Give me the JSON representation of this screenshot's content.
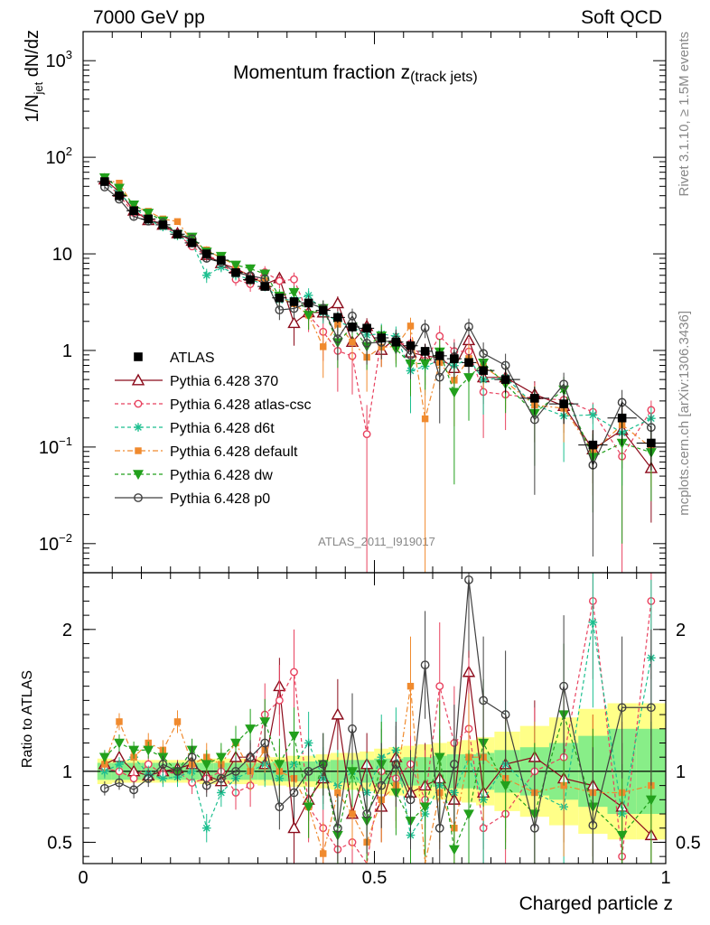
{
  "header": {
    "left": "7000 GeV pp",
    "right": "Soft QCD"
  },
  "side_text": {
    "rivet": "Rivet 3.1.10, ≥ 1.5M events",
    "mcplots": "mcplots.cern.ch [arXiv:1306.3436]"
  },
  "chart_data": {
    "type": "scatter",
    "title_main": "Momentum fraction ",
    "title_var": "z",
    "title_sub": "(track jets)",
    "analysis_tag": "ATLAS_2011_I919017",
    "xlabel": "Charged particle z",
    "ylabel_main_a": "1/N",
    "ylabel_main_sub": "jet",
    "ylabel_main_b": " dN/dz",
    "ylabel_ratio": "Ratio to ATLAS",
    "xlim": [
      0,
      1
    ],
    "ylim_main": [
      0.005,
      2000
    ],
    "ylog": true,
    "ylim_ratio": [
      0.35,
      2.4
    ],
    "x_ticks": [
      {
        "v": 0,
        "label": "0"
      },
      {
        "v": 0.5,
        "label": "0.5"
      },
      {
        "v": 1,
        "label": "1"
      }
    ],
    "y_ticks_main": [
      {
        "v": 0.01,
        "base": "10",
        "exp": "−2"
      },
      {
        "v": 0.1,
        "base": "10",
        "exp": "−1"
      },
      {
        "v": 1,
        "base": "1",
        "exp": ""
      },
      {
        "v": 10,
        "base": "10",
        "exp": ""
      },
      {
        "v": 100,
        "base": "10",
        "exp": "2"
      },
      {
        "v": 1000,
        "base": "10",
        "exp": "3"
      }
    ],
    "y_ticks_ratio": [
      {
        "v": 0.5,
        "label": "0.5"
      },
      {
        "v": 1,
        "label": "1"
      },
      {
        "v": 2,
        "label": "2"
      }
    ],
    "x": [
      0.037,
      0.062,
      0.087,
      0.112,
      0.137,
      0.162,
      0.187,
      0.212,
      0.237,
      0.262,
      0.287,
      0.312,
      0.337,
      0.362,
      0.387,
      0.412,
      0.437,
      0.462,
      0.487,
      0.512,
      0.537,
      0.562,
      0.587,
      0.612,
      0.637,
      0.662,
      0.687,
      0.725,
      0.775,
      0.825,
      0.875,
      0.925,
      0.975
    ],
    "data": {
      "name": "ATLAS",
      "values": [
        56,
        40,
        28,
        23,
        20,
        16,
        13,
        10,
        8.6,
        6.4,
        5.4,
        4.6,
        3.5,
        3.2,
        3.1,
        2.6,
        2.2,
        1.75,
        1.7,
        1.35,
        1.22,
        1.12,
        0.98,
        0.88,
        0.82,
        0.75,
        0.62,
        0.5,
        0.32,
        0.28,
        0.105,
        0.2,
        0.11
      ],
      "band_inner": [
        0.06,
        0.06,
        0.06,
        0.06,
        0.06,
        0.06,
        0.06,
        0.06,
        0.06,
        0.06,
        0.06,
        0.06,
        0.07,
        0.07,
        0.07,
        0.07,
        0.08,
        0.08,
        0.08,
        0.09,
        0.09,
        0.1,
        0.1,
        0.11,
        0.12,
        0.12,
        0.13,
        0.15,
        0.17,
        0.2,
        0.25,
        0.3,
        0.3
      ],
      "band_outer": [
        0.09,
        0.08,
        0.08,
        0.08,
        0.08,
        0.08,
        0.08,
        0.09,
        0.09,
        0.09,
        0.09,
        0.1,
        0.1,
        0.11,
        0.11,
        0.12,
        0.13,
        0.13,
        0.14,
        0.16,
        0.17,
        0.18,
        0.19,
        0.2,
        0.21,
        0.22,
        0.24,
        0.28,
        0.32,
        0.38,
        0.44,
        0.48,
        0.48
      ]
    },
    "series": [
      {
        "name": "Pythia 6.428 370",
        "color": "#8b0a1a",
        "marker": "triangle",
        "dash": "",
        "ratio": [
          1.05,
          1.1,
          1.0,
          0.97,
          1.0,
          1.02,
          1.05,
          0.97,
          0.93,
          1.1,
          1.1,
          1.05,
          1.6,
          0.6,
          0.8,
          0.95,
          1.4,
          0.7,
          1.05,
          0.75,
          1.1,
          0.85,
          0.9,
          0.95,
          0.8,
          1.7,
          0.85,
          1.05,
          1.1,
          0.95,
          0.9,
          0.75,
          0.55
        ],
        "err": [
          0.05,
          0.05,
          0.05,
          0.05,
          0.06,
          0.06,
          0.06,
          0.07,
          0.08,
          0.08,
          0.1,
          0.12,
          0.2,
          0.25,
          0.15,
          0.18,
          0.25,
          0.2,
          0.22,
          0.25,
          0.22,
          0.28,
          0.3,
          0.3,
          0.35,
          0.5,
          0.4,
          0.35,
          0.4,
          0.45,
          0.5,
          0.45,
          0.4
        ]
      },
      {
        "name": "Pythia 6.428 atlas-csc",
        "color": "#e8425f",
        "marker": "circle",
        "dash": "4,3",
        "ratio": [
          1.02,
          1.0,
          0.95,
          1.05,
          0.98,
          1.0,
          0.92,
          0.95,
          1.0,
          0.85,
          0.9,
          1.4,
          1.5,
          1.7,
          0.75,
          0.6,
          0.45,
          0.5,
          0.08,
          1.0,
          0.95,
          1.05,
          0.8,
          1.6,
          1.2,
          1.3,
          0.6,
          0.7,
          1.0,
          1.1,
          2.2,
          0.4,
          2.2
        ],
        "err": [
          0.06,
          0.06,
          0.06,
          0.06,
          0.07,
          0.08,
          0.08,
          0.1,
          0.12,
          0.12,
          0.15,
          0.22,
          0.25,
          0.3,
          0.25,
          0.3,
          0.28,
          0.3,
          0.08,
          0.3,
          0.3,
          0.35,
          0.35,
          0.45,
          0.4,
          0.5,
          0.4,
          0.4,
          0.45,
          0.5,
          0.55,
          0.5,
          0.55
        ]
      },
      {
        "name": "Pythia 6.428 d6t",
        "color": "#1cbf8f",
        "marker": "star",
        "dash": "4,3",
        "ratio": [
          1.0,
          1.05,
          1.1,
          0.98,
          0.95,
          0.96,
          1.0,
          0.6,
          0.85,
          0.95,
          1.0,
          1.05,
          0.95,
          1.05,
          1.2,
          0.95,
          0.9,
          1.0,
          0.85,
          1.1,
          1.15,
          0.55,
          0.7,
          0.9,
          0.85,
          1.1,
          0.8,
          1.05,
          0.85,
          0.75,
          2.05,
          0.7,
          1.8
        ],
        "err": [
          0.05,
          0.05,
          0.06,
          0.06,
          0.06,
          0.07,
          0.08,
          0.1,
          0.1,
          0.12,
          0.14,
          0.16,
          0.18,
          0.2,
          0.22,
          0.22,
          0.25,
          0.25,
          0.28,
          0.3,
          0.3,
          0.35,
          0.35,
          0.4,
          0.4,
          0.45,
          0.45,
          0.45,
          0.5,
          0.5,
          0.6,
          0.5,
          0.55
        ]
      },
      {
        "name": "Pythia 6.428 default",
        "color": "#f08a2e",
        "marker": "square",
        "dash": "6,3,2,3",
        "ratio": [
          1.05,
          1.35,
          1.1,
          1.2,
          1.15,
          1.35,
          1.05,
          1.1,
          1.05,
          1.2,
          1.0,
          1.15,
          1.0,
          0.95,
          0.75,
          0.42,
          0.85,
          0.7,
          0.5,
          0.8,
          0.9,
          1.6,
          0.2,
          0.85,
          0.6,
          1.1,
          1.1,
          0.95,
          0.85,
          0.9,
          0.85,
          0.85,
          0.9
        ],
        "err": [
          0.05,
          0.06,
          0.06,
          0.07,
          0.07,
          0.08,
          0.08,
          0.1,
          0.11,
          0.12,
          0.14,
          0.16,
          0.18,
          0.2,
          0.22,
          0.22,
          0.25,
          0.25,
          0.28,
          0.3,
          0.3,
          0.35,
          0.35,
          0.4,
          0.4,
          0.45,
          0.45,
          0.45,
          0.5,
          0.5,
          0.55,
          0.5,
          0.55
        ]
      },
      {
        "name": "Pythia 6.428 dw",
        "color": "#22a01c",
        "marker": "tri-down",
        "dash": "4,3",
        "ratio": [
          1.1,
          1.2,
          1.15,
          1.15,
          1.1,
          1.0,
          1.15,
          1.05,
          1.1,
          1.2,
          1.3,
          1.35,
          1.05,
          1.25,
          0.75,
          1.05,
          0.55,
          1.0,
          0.65,
          1.05,
          0.85,
          0.65,
          0.75,
          1.1,
          0.45,
          0.7,
          1.2,
          0.9,
          0.7,
          1.4,
          0.75,
          0.55,
          0.8
        ],
        "err": [
          0.05,
          0.06,
          0.06,
          0.06,
          0.07,
          0.07,
          0.08,
          0.1,
          0.1,
          0.12,
          0.14,
          0.16,
          0.18,
          0.2,
          0.22,
          0.22,
          0.25,
          0.25,
          0.28,
          0.3,
          0.3,
          0.35,
          0.35,
          0.4,
          0.4,
          0.45,
          0.45,
          0.45,
          0.5,
          0.5,
          0.55,
          0.5,
          0.55
        ]
      },
      {
        "name": "Pythia 6.428 p0",
        "color": "#404040",
        "marker": "open-circle",
        "dash": "",
        "ratio": [
          0.88,
          0.92,
          0.87,
          0.95,
          1.05,
          1.0,
          1.1,
          0.9,
          0.95,
          1.0,
          1.1,
          1.2,
          0.75,
          0.85,
          1.0,
          1.05,
          0.6,
          1.3,
          0.7,
          0.9,
          1.05,
          0.8,
          1.75,
          0.6,
          1.05,
          2.35,
          1.5,
          1.4,
          0.6,
          1.6,
          0.62,
          1.45,
          1.45
        ],
        "err": [
          0.05,
          0.05,
          0.06,
          0.06,
          0.06,
          0.07,
          0.08,
          0.08,
          0.1,
          0.1,
          0.12,
          0.14,
          0.16,
          0.18,
          0.2,
          0.22,
          0.24,
          0.25,
          0.28,
          0.3,
          0.3,
          0.35,
          0.38,
          0.4,
          0.42,
          0.5,
          0.45,
          0.45,
          0.5,
          0.5,
          0.55,
          0.5,
          0.55
        ]
      }
    ]
  }
}
